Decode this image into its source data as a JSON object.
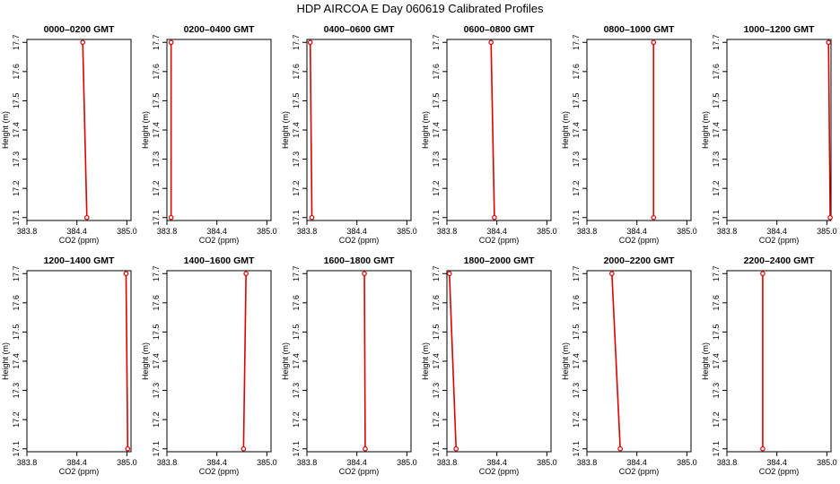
{
  "title": "HDP  AIRCOA E  Day 060619  Calibrated Profiles",
  "colors": {
    "line": "#dd0000",
    "axis": "#000000"
  },
  "chart_data": {
    "type": "line",
    "xlabel": "CO2 (ppm)",
    "ylabel": "Height (m)",
    "xlim": [
      383.8,
      385.05
    ],
    "ylim": [
      17.09,
      17.71
    ],
    "xticks": [
      "383.8",
      "384.4",
      "385.0"
    ],
    "yticks": [
      "17.1",
      "17.2",
      "17.3",
      "17.4",
      "17.5",
      "17.6",
      "17.7"
    ],
    "panels": [
      {
        "title": "0000–0200 GMT",
        "points": [
          [
            384.52,
            17.1
          ],
          [
            384.47,
            17.7
          ]
        ]
      },
      {
        "title": "0200–0400 GMT",
        "points": [
          [
            383.85,
            17.1
          ],
          [
            383.85,
            17.7
          ]
        ]
      },
      {
        "title": "0400–0600 GMT",
        "points": [
          [
            383.86,
            17.1
          ],
          [
            383.84,
            17.7
          ]
        ]
      },
      {
        "title": "0600–0800 GMT",
        "points": [
          [
            384.37,
            17.1
          ],
          [
            384.33,
            17.7
          ]
        ]
      },
      {
        "title": "0800–1000 GMT",
        "points": [
          [
            384.6,
            17.1
          ],
          [
            384.6,
            17.7
          ]
        ]
      },
      {
        "title": "1000–1200 GMT",
        "points": [
          [
            385.04,
            17.1
          ],
          [
            385.02,
            17.7
          ]
        ]
      },
      {
        "title": "1200–1400 GMT",
        "points": [
          [
            385.01,
            17.1
          ],
          [
            384.99,
            17.7
          ]
        ]
      },
      {
        "title": "1400–1600 GMT",
        "points": [
          [
            384.72,
            17.1
          ],
          [
            384.75,
            17.7
          ]
        ]
      },
      {
        "title": "1600–1800 GMT",
        "points": [
          [
            384.5,
            17.1
          ],
          [
            384.49,
            17.7
          ]
        ]
      },
      {
        "title": "1800–2000 GMT",
        "points": [
          [
            383.91,
            17.1
          ],
          [
            383.83,
            17.7
          ]
        ]
      },
      {
        "title": "2000–2200 GMT",
        "points": [
          [
            384.2,
            17.1
          ],
          [
            384.1,
            17.7
          ]
        ]
      },
      {
        "title": "2200–2400 GMT",
        "points": [
          [
            384.23,
            17.1
          ],
          [
            384.23,
            17.7
          ]
        ]
      }
    ]
  }
}
